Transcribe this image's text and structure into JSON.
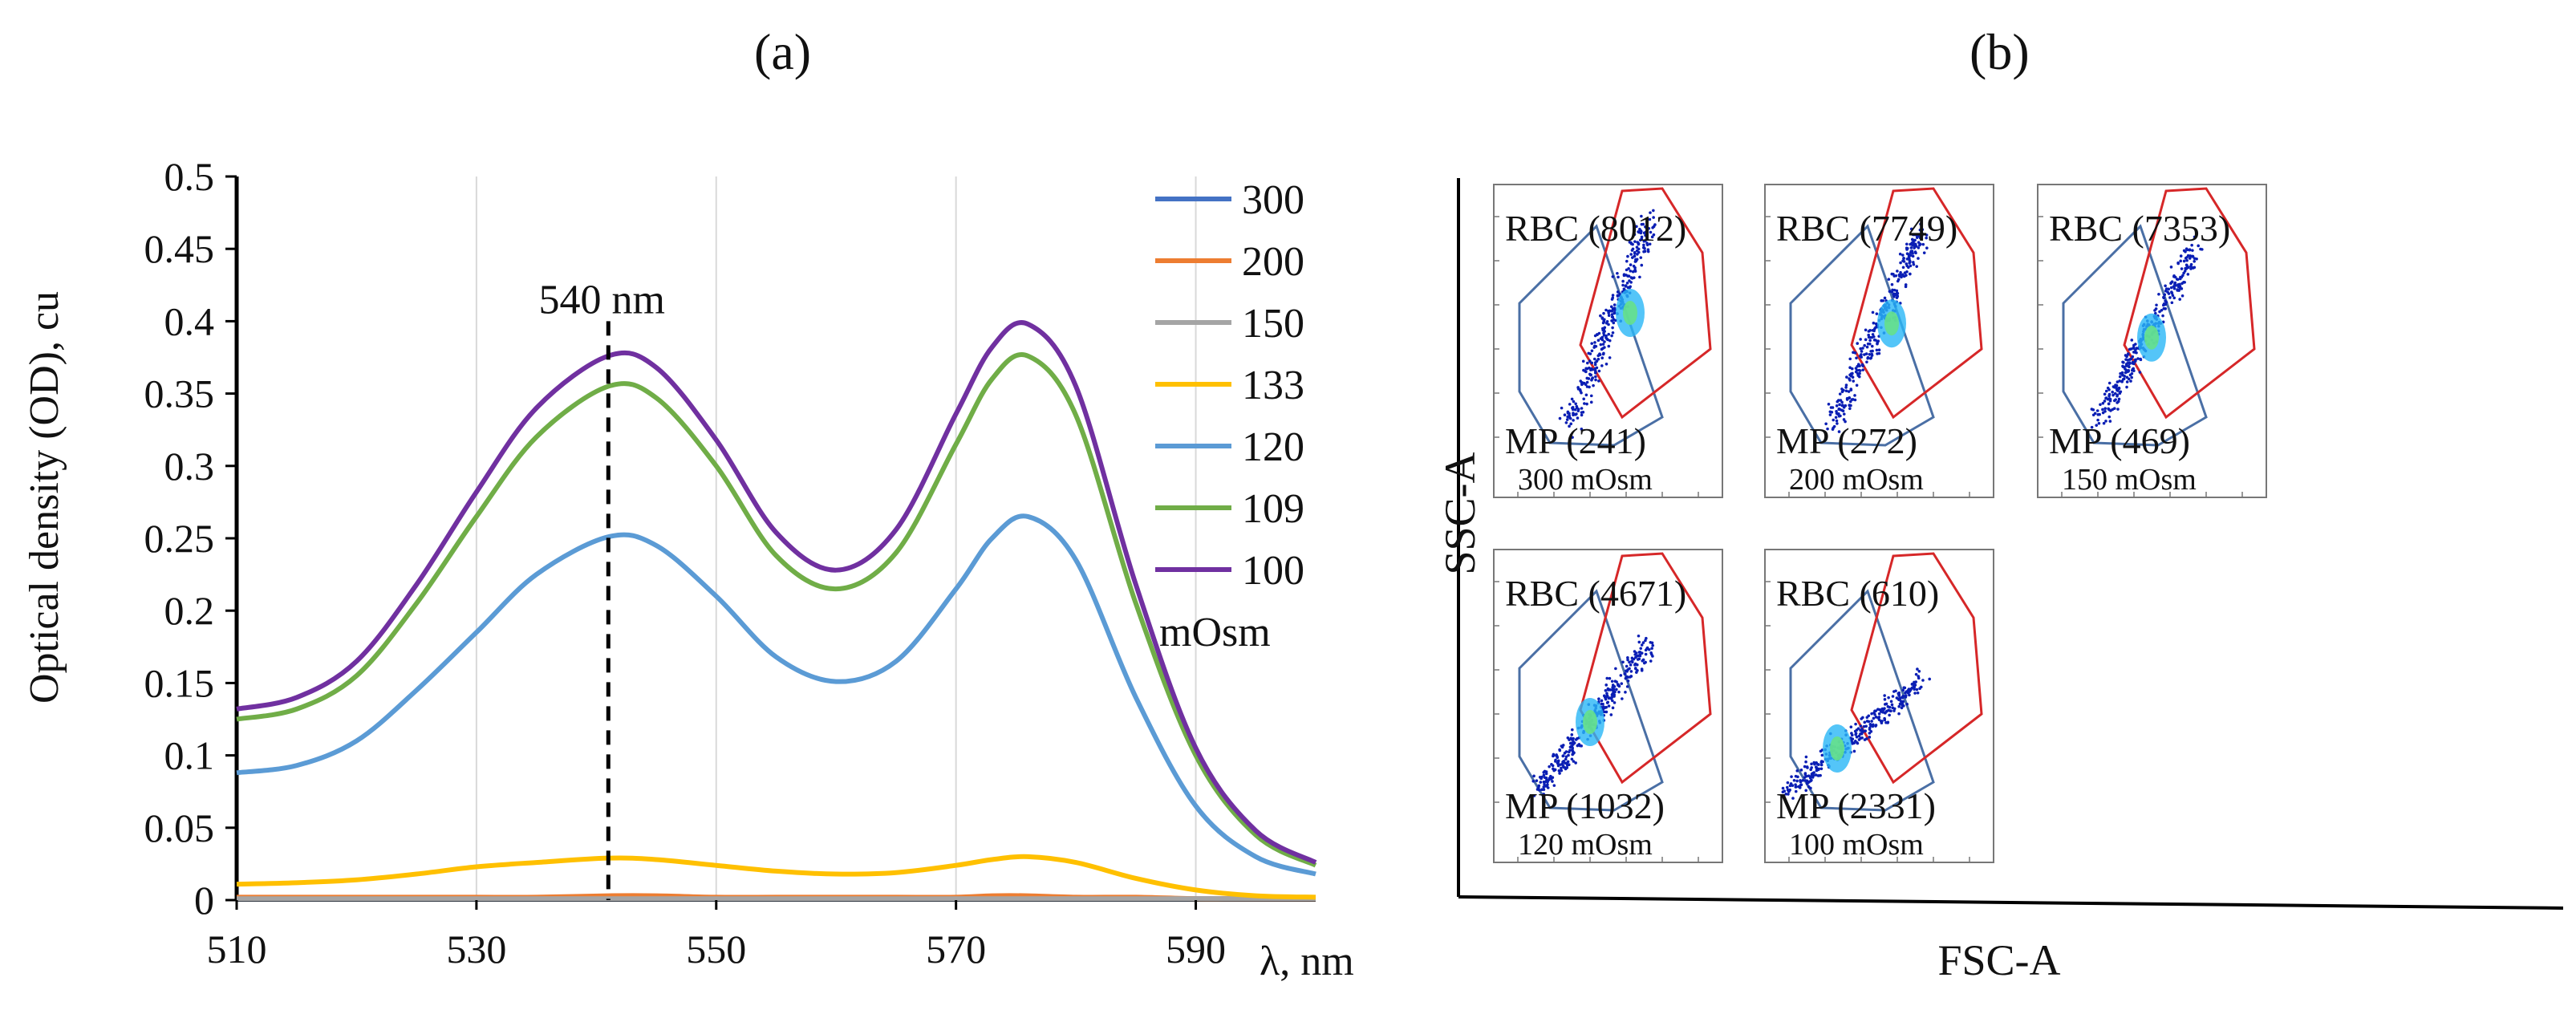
{
  "panel_a": {
    "label": "(a)",
    "chart_data": {
      "type": "line",
      "title": "",
      "xlabel": "λ, nm",
      "ylabel": "Optical density (OD), cu",
      "xlim": [
        510,
        600
      ],
      "ylim": [
        0,
        0.5
      ],
      "x_ticks": [
        "510",
        "530",
        "550",
        "570",
        "590"
      ],
      "y_ticks": [
        "0",
        "0.05",
        "0.1",
        "0.15",
        "0.2",
        "0.25",
        "0.3",
        "0.35",
        "0.4",
        "0.45",
        "0.5"
      ],
      "grid": "vertical",
      "legend": {
        "placement": "top-right",
        "unit_label": "mOsm"
      },
      "annotation": {
        "text": "540 nm",
        "x": 541,
        "line": "dashed"
      },
      "x": [
        510,
        515,
        520,
        525,
        530,
        535,
        541,
        545,
        550,
        555,
        560,
        565,
        570,
        573,
        576,
        580,
        585,
        590,
        595,
        600
      ],
      "series": [
        {
          "name": "300",
          "color": "#4472c4",
          "values": [
            0.001,
            0.001,
            0.001,
            0.001,
            0.001,
            0.001,
            0.001,
            0.001,
            0.001,
            0.001,
            0.001,
            0.001,
            0.001,
            0.001,
            0.001,
            0.001,
            0.001,
            0.001,
            0.001,
            0.001
          ]
        },
        {
          "name": "200",
          "color": "#ed7d31",
          "values": [
            0.002,
            0.002,
            0.002,
            0.002,
            0.002,
            0.002,
            0.003,
            0.003,
            0.002,
            0.002,
            0.002,
            0.002,
            0.002,
            0.003,
            0.003,
            0.002,
            0.002,
            0.001,
            0.001,
            0.001
          ]
        },
        {
          "name": "150",
          "color": "#a5a5a5",
          "values": [
            0.001,
            0.001,
            0.001,
            0.001,
            0.001,
            0.001,
            0.001,
            0.001,
            0.001,
            0.001,
            0.001,
            0.001,
            0.001,
            0.001,
            0.001,
            0.001,
            0.001,
            0.001,
            0.001,
            0.001
          ]
        },
        {
          "name": "133",
          "color": "#ffc000",
          "values": [
            0.011,
            0.012,
            0.014,
            0.018,
            0.023,
            0.026,
            0.029,
            0.028,
            0.024,
            0.02,
            0.018,
            0.019,
            0.024,
            0.028,
            0.03,
            0.026,
            0.015,
            0.007,
            0.003,
            0.002
          ]
        },
        {
          "name": "120",
          "color": "#5b9bd5",
          "values": [
            0.088,
            0.093,
            0.11,
            0.145,
            0.185,
            0.225,
            0.251,
            0.245,
            0.21,
            0.168,
            0.151,
            0.165,
            0.215,
            0.25,
            0.265,
            0.235,
            0.14,
            0.065,
            0.03,
            0.018
          ]
        },
        {
          "name": "109",
          "color": "#70ad47",
          "values": [
            0.125,
            0.132,
            0.155,
            0.205,
            0.265,
            0.32,
            0.355,
            0.347,
            0.3,
            0.238,
            0.215,
            0.24,
            0.315,
            0.36,
            0.376,
            0.335,
            0.205,
            0.1,
            0.045,
            0.024
          ]
        },
        {
          "name": "100",
          "color": "#7030a0",
          "values": [
            0.132,
            0.14,
            0.165,
            0.218,
            0.282,
            0.34,
            0.376,
            0.368,
            0.318,
            0.254,
            0.228,
            0.256,
            0.336,
            0.382,
            0.398,
            0.355,
            0.218,
            0.105,
            0.048,
            0.026
          ]
        }
      ]
    }
  },
  "panel_b": {
    "label": "(b)",
    "xlabel": "FSC-A",
    "ylabel": "SSC-A",
    "plots": [
      {
        "rbc": "RBC (8012)",
        "mp": "MP (241)",
        "osm": "300 mOsm"
      },
      {
        "rbc": "RBC (7749)",
        "mp": "MP (272)",
        "osm": "200 mOsm"
      },
      {
        "rbc": "RBC (7353)",
        "mp": "MP (469)",
        "osm": "150 mOsm"
      },
      {
        "rbc": "RBC (4671)",
        "mp": "MP (1032)",
        "osm": "120 mOsm"
      },
      {
        "rbc": "RBC (610)",
        "mp": "MP (2331)",
        "osm": "100 mOsm"
      }
    ],
    "colors": {
      "rbc_gate": "#d62728",
      "mp_gate": "#4a6fa5",
      "dots": "#0a1eb4"
    }
  }
}
